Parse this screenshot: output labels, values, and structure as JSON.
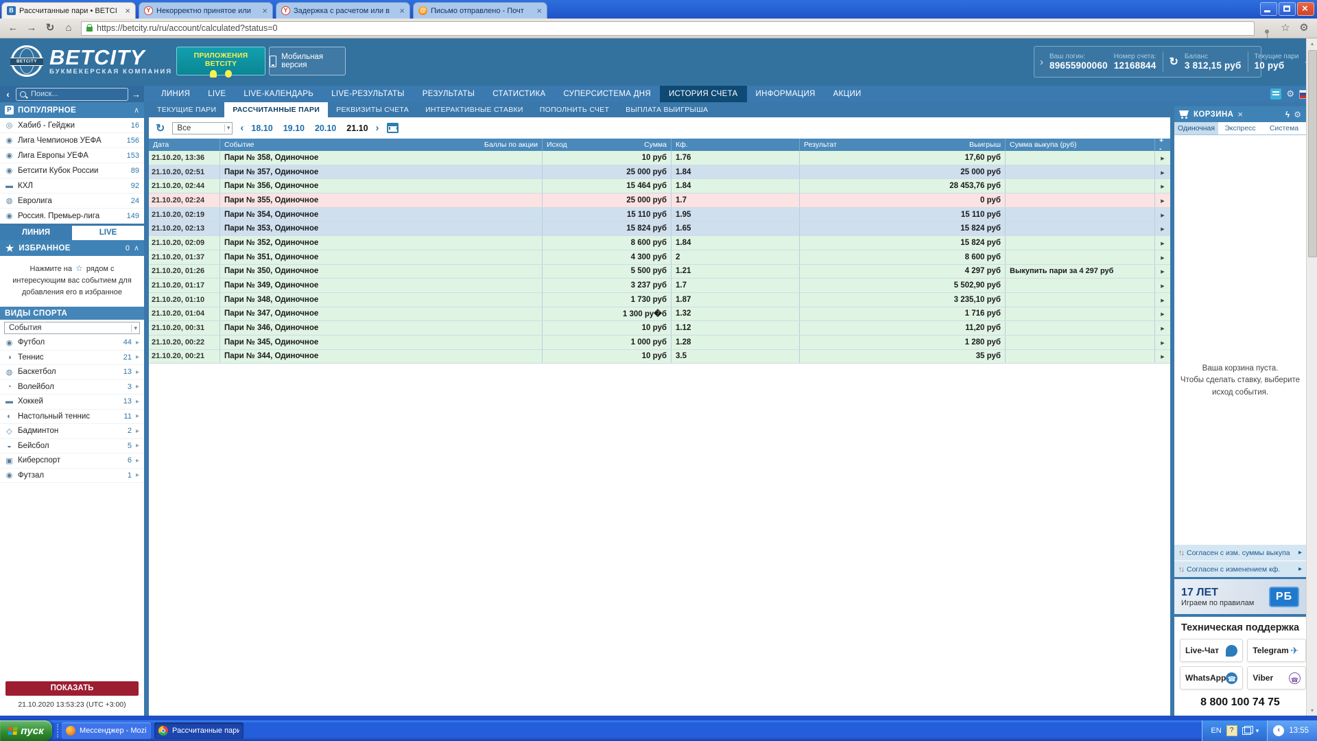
{
  "browser": {
    "tabs": [
      {
        "title": "Рассчитанные пари • BETCI",
        "favicon": "betcity",
        "state": "active"
      },
      {
        "title": "Некорректно принятое или",
        "favicon": "alert",
        "state": ""
      },
      {
        "title": "Задержка с расчетом или в",
        "favicon": "alert",
        "state": ""
      },
      {
        "title": "Письмо отправлено - Почт",
        "favicon": "mail",
        "state": ""
      }
    ],
    "url": "https://betcity.ru/ru/account/calculated?status=0"
  },
  "header": {
    "logo_title": "BETCITY",
    "logo_sub": "БУКМЕКЕРСКАЯ КОМПАНИЯ",
    "logo_globe_text": "BETCITY",
    "apps_button": "ПРИЛОЖЕНИЯ BETCITY",
    "mobile_button": "Мобильная версия",
    "login_label": "Ваш логин:",
    "login_value": "89655900060",
    "account_label": "Номер счета:",
    "account_value": "12168844",
    "balance_label": "Баланс",
    "balance_value": "3 812,15 руб",
    "current_label": "Текущие пари",
    "current_value": "10 руб"
  },
  "nav": {
    "items": [
      {
        "label": "ЛИНИЯ",
        "state": ""
      },
      {
        "label": "LIVE",
        "state": ""
      },
      {
        "label": "LIVE-КАЛЕНДАРЬ",
        "state": ""
      },
      {
        "label": "LIVE-РЕЗУЛЬТАТЫ",
        "state": ""
      },
      {
        "label": "РЕЗУЛЬТАТЫ",
        "state": ""
      },
      {
        "label": "СТАТИСТИКА",
        "state": ""
      },
      {
        "label": "СУПЕРСИСТЕМА ДНЯ",
        "state": ""
      },
      {
        "label": "ИСТОРИЯ СЧЕТА",
        "state": "active"
      },
      {
        "label": "ИНФОРМАЦИЯ",
        "state": ""
      },
      {
        "label": "АКЦИИ",
        "state": ""
      }
    ]
  },
  "subtabs": {
    "items": [
      {
        "label": "ТЕКУЩИЕ ПАРИ",
        "state": ""
      },
      {
        "label": "РАССЧИТАННЫЕ ПАРИ",
        "state": "active"
      },
      {
        "label": "РЕКВИЗИТЫ СЧЕТА",
        "state": ""
      },
      {
        "label": "ИНТЕРАКТИВНЫЕ СТАВКИ",
        "state": ""
      },
      {
        "label": "ПОПОЛНИТЬ СЧЕТ",
        "state": ""
      },
      {
        "label": "ВЫПЛАТА ВЫИГРЫША",
        "state": ""
      }
    ]
  },
  "filter": {
    "period_value": "Все",
    "dates": [
      {
        "label": "18.10",
        "state": ""
      },
      {
        "label": "19.10",
        "state": ""
      },
      {
        "label": "20.10",
        "state": ""
      },
      {
        "label": "21.10",
        "state": "active"
      }
    ]
  },
  "sidebar": {
    "search_placeholder": "Поиск...",
    "popular_header": "ПОПУЛЯРНОЕ",
    "popular": [
      {
        "glyph": "◎",
        "label": "Хабиб - Гейджи",
        "count": "16"
      },
      {
        "glyph": "◉",
        "label": "Лига Чемпионов УЕФА",
        "count": "156"
      },
      {
        "glyph": "◉",
        "label": "Лига Европы УЕФА",
        "count": "153"
      },
      {
        "glyph": "◉",
        "label": "Бетсити Кубок России",
        "count": "89"
      },
      {
        "glyph": "▬",
        "label": "КХЛ",
        "count": "92"
      },
      {
        "glyph": "◍",
        "label": "Евролига",
        "count": "24"
      },
      {
        "glyph": "◉",
        "label": "Россия. Премьер-лига",
        "count": "149"
      }
    ],
    "line_tab": "ЛИНИЯ",
    "live_tab": "LIVE",
    "favorites_header": "ИЗБРАННОЕ",
    "favorites_count": "0",
    "hint_before": "Нажмите на",
    "hint_star": "☆",
    "hint_after": "рядом с интересующим вас событием для добавления его в избранное",
    "sports_header": "ВИДЫ СПОРТА",
    "events_select": "События",
    "sports": [
      {
        "glyph": "◉",
        "label": "Футбол",
        "count": "44"
      },
      {
        "glyph": "◑",
        "label": "Теннис",
        "count": "21"
      },
      {
        "glyph": "◍",
        "label": "Баскетбол",
        "count": "13"
      },
      {
        "glyph": "◔",
        "label": "Волейбол",
        "count": "3"
      },
      {
        "glyph": "▬",
        "label": "Хоккей",
        "count": "13"
      },
      {
        "glyph": "◐",
        "label": "Настольный теннис",
        "count": "11"
      },
      {
        "glyph": "◇",
        "label": "Бадминтон",
        "count": "2"
      },
      {
        "glyph": "◒",
        "label": "Бейсбол",
        "count": "5"
      },
      {
        "glyph": "▣",
        "label": "Киберспорт",
        "count": "6"
      },
      {
        "glyph": "◉",
        "label": "Футзал",
        "count": "1"
      }
    ],
    "show_button": "ПОКАЗАТЬ",
    "timestamp": "21.10.2020 13:53:23 (UTC +3:00)"
  },
  "table": {
    "headers": {
      "date": "Дата",
      "event": "Событие",
      "points": "Баллы по акции",
      "outcome": "Исход",
      "sum": "Сумма",
      "coef": "Кф.",
      "result": "Результат",
      "win": "Выигрыш",
      "buyout": "Сумма выкупа (руб)",
      "expand": "+ -"
    },
    "rows": [
      {
        "date": "21.10.20, 13:36",
        "event": "Пари № 358, Одиночное",
        "sum": "10 руб",
        "coef": "1.76",
        "win": "17,60 руб",
        "buyout": "",
        "status": "won"
      },
      {
        "date": "21.10.20, 02:51",
        "event": "Пари № 357, Одиночное",
        "sum": "25 000 руб",
        "coef": "1.84",
        "win": "25 000 руб",
        "buyout": "",
        "status": "returned"
      },
      {
        "date": "21.10.20, 02:44",
        "event": "Пари № 356, Одиночное",
        "sum": "15 464 руб",
        "coef": "1.84",
        "win": "28 453,76 руб",
        "buyout": "",
        "status": "won"
      },
      {
        "date": "21.10.20, 02:24",
        "event": "Пари № 355, Одиночное",
        "sum": "25 000 руб",
        "coef": "1.7",
        "win": "0 руб",
        "buyout": "",
        "status": "lost"
      },
      {
        "date": "21.10.20, 02:19",
        "event": "Пари № 354, Одиночное",
        "sum": "15 110 руб",
        "coef": "1.95",
        "win": "15 110 руб",
        "buyout": "",
        "status": "returned"
      },
      {
        "date": "21.10.20, 02:13",
        "event": "Пари № 353, Одиночное",
        "sum": "15 824 руб",
        "coef": "1.65",
        "win": "15 824 руб",
        "buyout": "",
        "status": "returned"
      },
      {
        "date": "21.10.20, 02:09",
        "event": "Пари № 352, Одиночное",
        "sum": "8 600 руб",
        "coef": "1.84",
        "win": "15 824 руб",
        "buyout": "",
        "status": "won"
      },
      {
        "date": "21.10.20, 01:37",
        "event": "Пари № 351, Одиночное",
        "sum": "4 300 руб",
        "coef": "2",
        "win": "8 600 руб",
        "buyout": "",
        "status": "won"
      },
      {
        "date": "21.10.20, 01:26",
        "event": "Пари № 350, Одиночное",
        "sum": "5 500 руб",
        "coef": "1.21",
        "win": "4 297 руб",
        "buyout": "Выкупить пари за 4 297 руб",
        "status": "won"
      },
      {
        "date": "21.10.20, 01:17",
        "event": "Пари № 349, Одиночное",
        "sum": "3 237 руб",
        "coef": "1.7",
        "win": "5 502,90 руб",
        "buyout": "",
        "status": "won"
      },
      {
        "date": "21.10.20, 01:10",
        "event": "Пари № 348, Одиночное",
        "sum": "1 730 руб",
        "coef": "1.87",
        "win": "3 235,10 руб",
        "buyout": "",
        "status": "won"
      },
      {
        "date": "21.10.20, 01:04",
        "event": "Пари № 347, Одиночное",
        "sum": "1 300 ру�б",
        "coef": "1.32",
        "win": "1 716 руб",
        "buyout": "",
        "status": "won"
      },
      {
        "date": "21.10.20, 00:31",
        "event": "Пари № 346, Одиночное",
        "sum": "10 руб",
        "coef": "1.12",
        "win": "11,20 руб",
        "buyout": "",
        "status": "won"
      },
      {
        "date": "21.10.20, 00:22",
        "event": "Пари № 345, Одиночное",
        "sum": "1 000 руб",
        "coef": "1.28",
        "win": "1 280 руб",
        "buyout": "",
        "status": "won"
      },
      {
        "date": "21.10.20, 00:21",
        "event": "Пари № 344, Одиночное",
        "sum": "10 руб",
        "coef": "3.5",
        "win": "35 руб",
        "buyout": "",
        "status": "won"
      }
    ]
  },
  "basket": {
    "title": "КОРЗИНА",
    "tabs": [
      {
        "label": "Одиночная",
        "state": "active"
      },
      {
        "label": "Экспресс",
        "state": ""
      },
      {
        "label": "Система",
        "state": ""
      }
    ],
    "empty_lines": [
      "Ваша корзина пуста.",
      "Чтобы сделать ставку, выберите",
      "исход события."
    ],
    "agree1": "Согласен с изм. суммы выкупа",
    "agree2": "Согласен с изменением кф."
  },
  "banner": {
    "years": "17 ЛЕТ",
    "slogan": "Играем по правилам",
    "logo": "РБ"
  },
  "support": {
    "title": "Техническая поддержка",
    "buttons": [
      {
        "label": "Live-Чат",
        "icon": "chat"
      },
      {
        "label": "Telegram",
        "icon": "telegram"
      },
      {
        "label": "WhatsApp",
        "icon": "whatsapp"
      },
      {
        "label": "Viber",
        "icon": "viber"
      }
    ],
    "phone": "8 800 100 74 75"
  },
  "taskbar": {
    "start": "пуск",
    "apps": [
      {
        "label": "Мессенджер - Mozilla...",
        "icon": "firefox",
        "state": ""
      },
      {
        "label": "Рассчитанные пари ...",
        "icon": "chrome",
        "state": "active"
      }
    ],
    "lang": "EN",
    "time": "13:55"
  },
  "colors": {
    "row_won": "#e0f4e4",
    "row_returned": "#cfdfee",
    "row_lost": "#fbe3e3",
    "header_blue": "#33719f",
    "nav_active": "#0e4a74",
    "show_button_red": "#9d1d31"
  }
}
